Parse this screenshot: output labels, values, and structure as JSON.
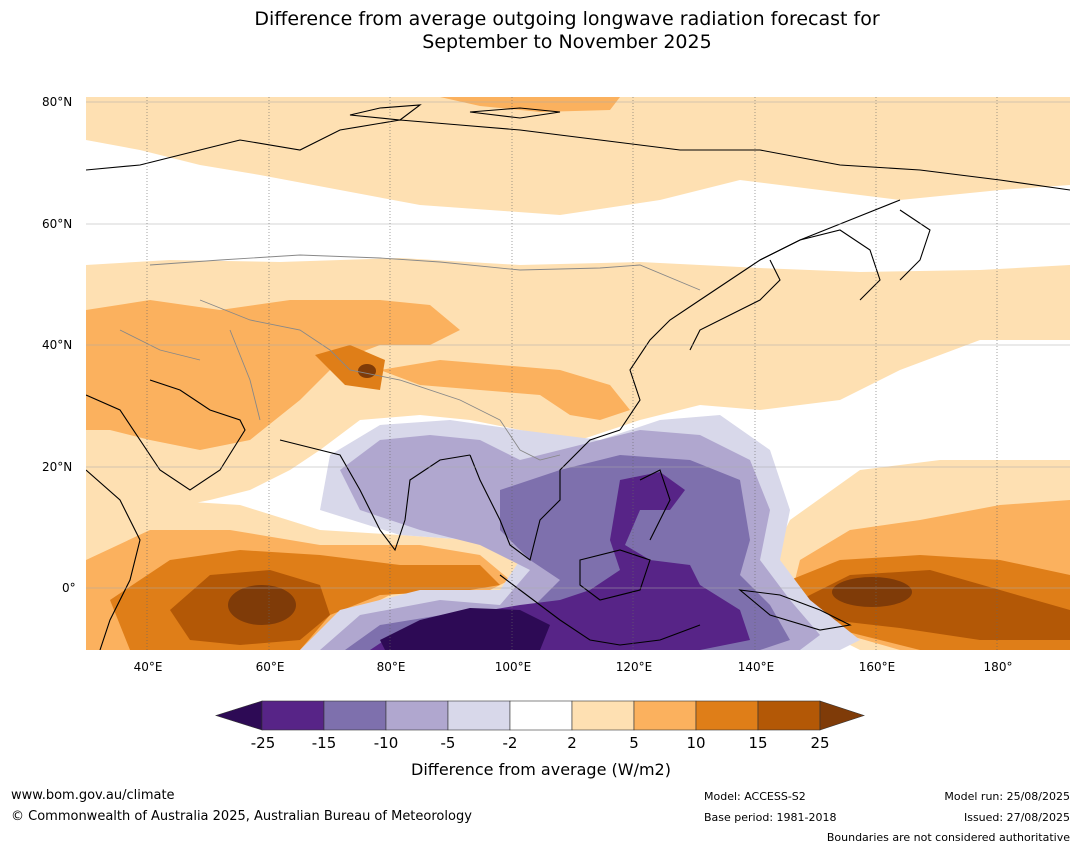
{
  "title_line1": "Difference from average outgoing longwave radiation forecast for",
  "title_line2": "September to November 2025",
  "map": {
    "lat_labels": [
      "80°N",
      "60°N",
      "40°N",
      "20°N",
      "0°"
    ],
    "lon_labels": [
      "40°E",
      "60°E",
      "80°E",
      "100°E",
      "120°E",
      "140°E",
      "160°E",
      "180°"
    ],
    "lon_range_deg": [
      30,
      192
    ],
    "lat_range_deg": [
      -10,
      81
    ]
  },
  "legend": {
    "tick_labels": [
      "-25",
      "-15",
      "-10",
      "-5",
      "-2",
      "2",
      "5",
      "10",
      "15",
      "25"
    ],
    "colors": [
      "#2d0a55",
      "#572487",
      "#7e70ad",
      "#b0a7cf",
      "#d8d8ea",
      "#ffffff",
      "#fee0b2",
      "#fbb15e",
      "#df7e18",
      "#b35806",
      "#7f3b08"
    ],
    "title": "Difference from average (W/m2)"
  },
  "footer": {
    "url": "www.bom.gov.au/climate",
    "copyright": "© Commonwealth of Australia 2025, Australian Bureau of Meteorology",
    "model": "Model: ACCESS-S2",
    "base_period": "Base period: 1981-2018",
    "model_run": "Model run: 25/08/2025",
    "issued": "Issued: 27/08/2025",
    "disclaimer": "Boundaries are not considered authoritative"
  }
}
